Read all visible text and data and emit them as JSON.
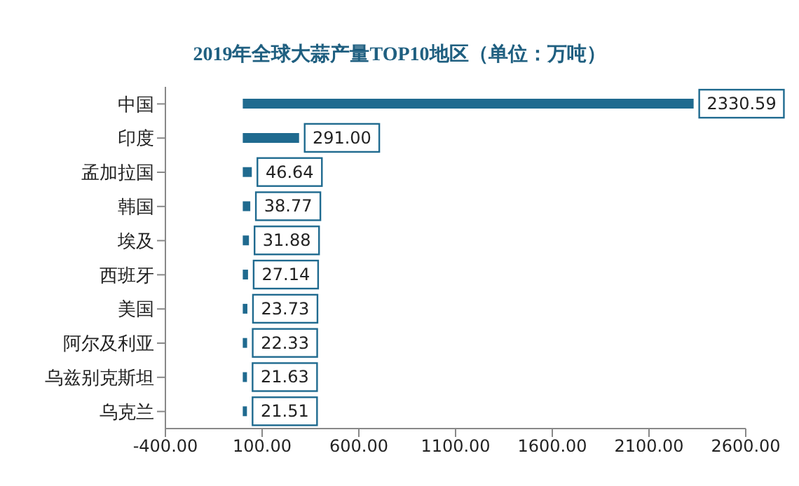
{
  "chart_data": {
    "type": "bar",
    "orientation": "horizontal",
    "title": "2019年全球大蒜产量TOP10地区（单位：万吨）",
    "categories": [
      "中国",
      "印度",
      "孟加拉国",
      "韩国",
      "埃及",
      "西班牙",
      "美国",
      "阿尔及利亚",
      "乌兹别克斯坦",
      "乌克兰"
    ],
    "values": [
      2330.59,
      291.0,
      46.64,
      38.77,
      31.88,
      27.14,
      23.73,
      22.33,
      21.63,
      21.51
    ],
    "value_labels": [
      "2330.59",
      "291.00",
      "46.64",
      "38.77",
      "31.88",
      "27.14",
      "23.73",
      "22.33",
      "21.63",
      "21.51"
    ],
    "color": "#1f6a8f",
    "xlim": [
      -400,
      2600
    ],
    "xticks": [
      {
        "value": -400,
        "label": "-400.00"
      },
      {
        "value": 100,
        "label": "100.00"
      },
      {
        "value": 600,
        "label": "600.00"
      },
      {
        "value": 1100,
        "label": "1100.00"
      },
      {
        "value": 1600,
        "label": "1600.00"
      },
      {
        "value": 2100,
        "label": "2100.00"
      },
      {
        "value": 2600,
        "label": "2600.00"
      }
    ],
    "grid": false,
    "legend": false
  }
}
